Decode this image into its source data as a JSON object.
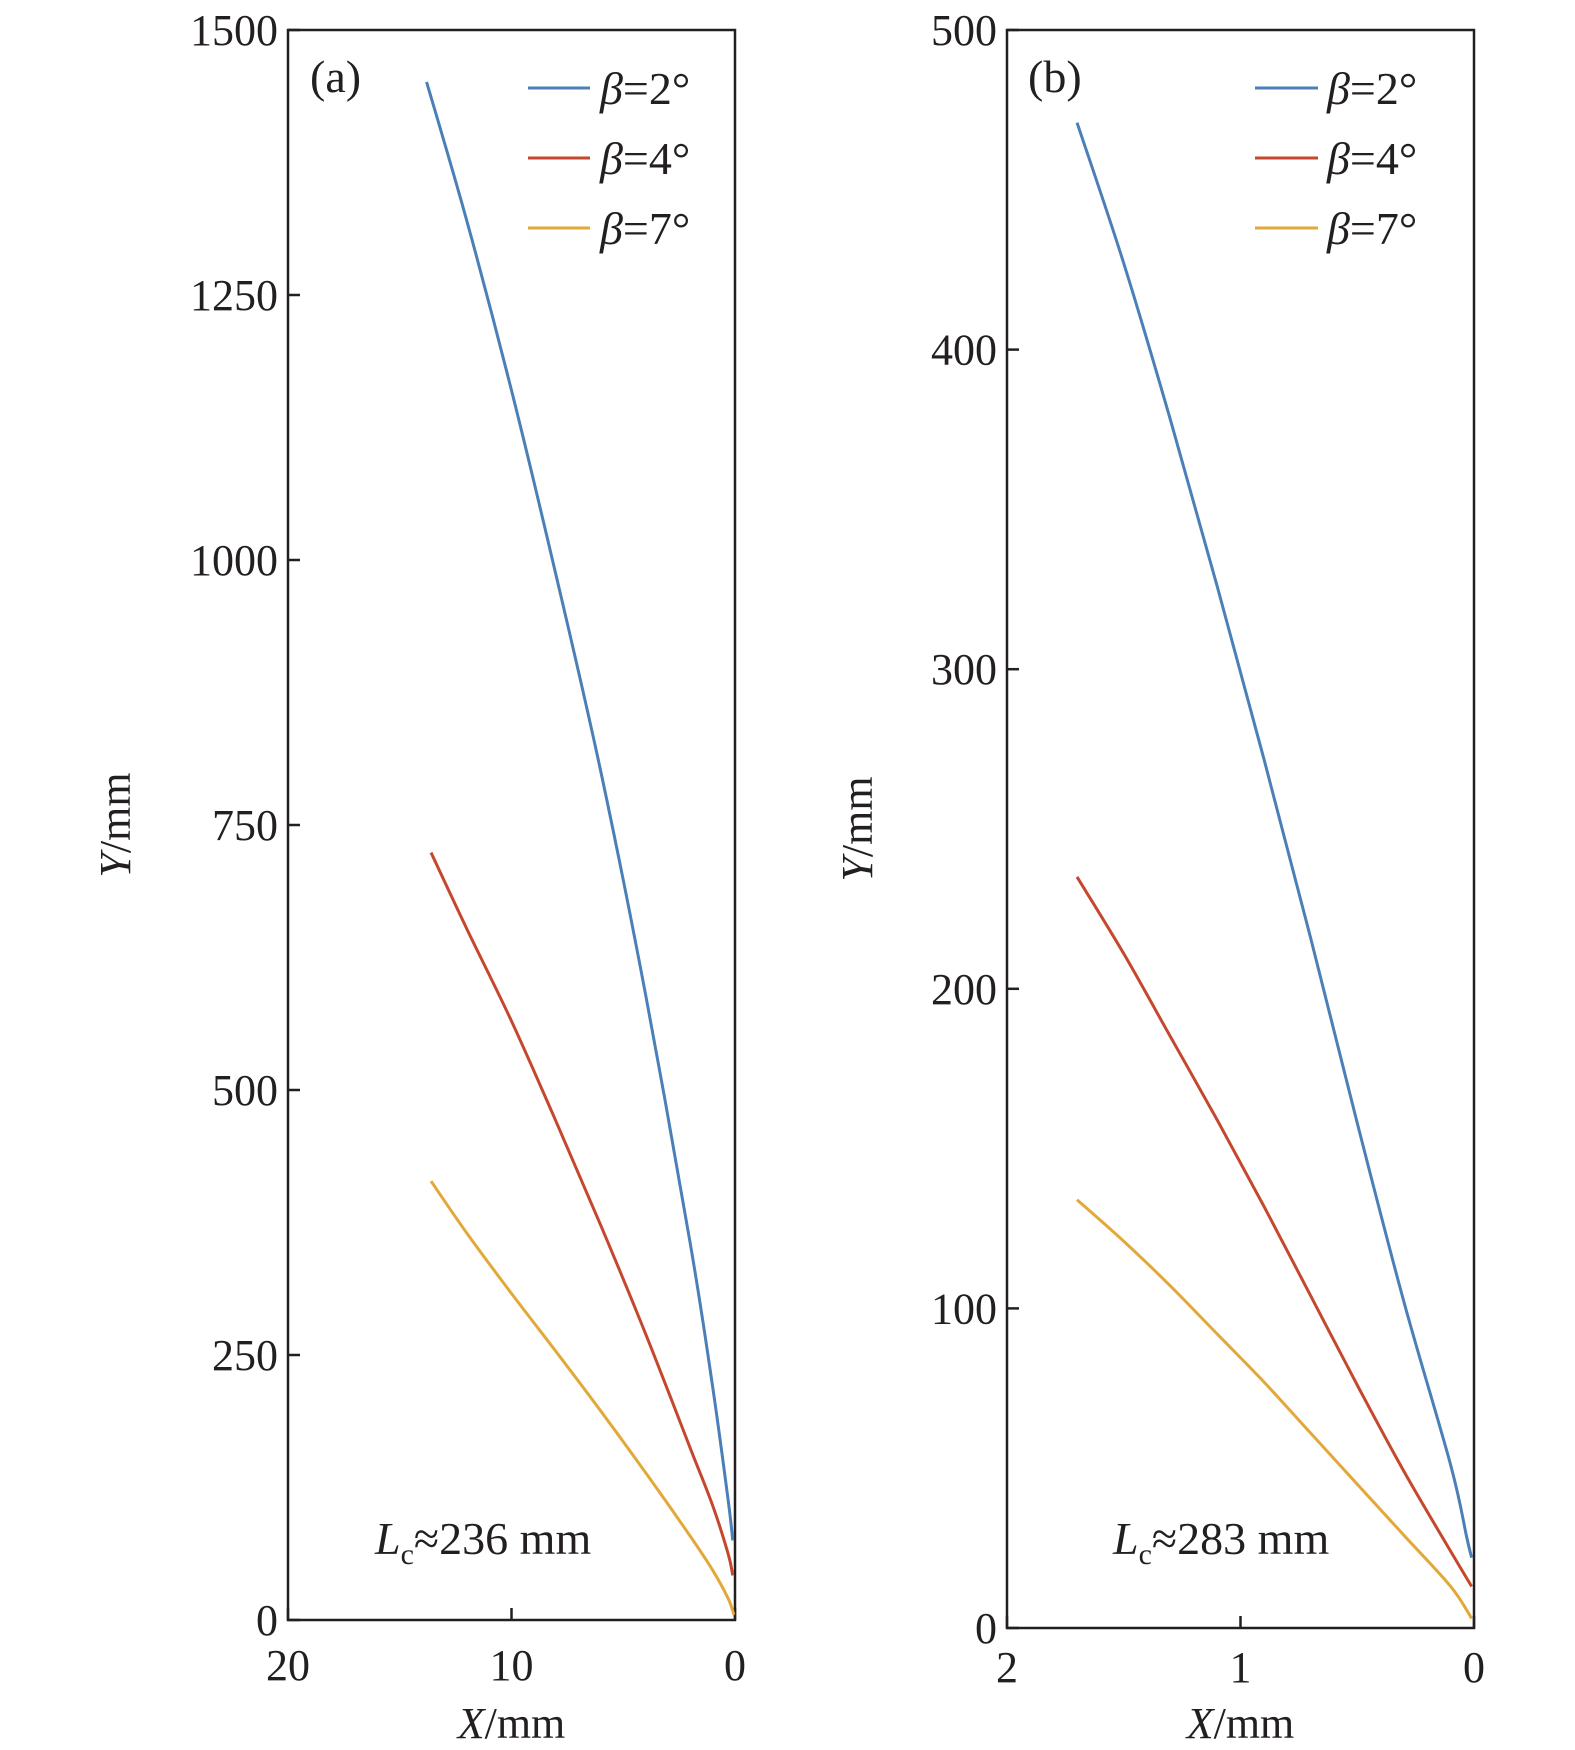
{
  "chart_data": [
    {
      "type": "line",
      "panel_label": "(a)",
      "xlabel": {
        "italic": "X",
        "rest": "/mm"
      },
      "ylabel": {
        "italic": "Y",
        "rest": "/mm"
      },
      "xlim": [
        20,
        0
      ],
      "ylim": [
        0,
        1500
      ],
      "xticks": [
        20,
        10,
        0
      ],
      "yticks": [
        0,
        250,
        500,
        750,
        1000,
        1250,
        1500
      ],
      "annotation": {
        "var": "L",
        "sub": "c",
        "rest": "≈236 mm"
      },
      "legend_position": "top-right",
      "series": [
        {
          "name": "β=2°",
          "greek": "β",
          "value_text": "=2°",
          "color": "#4a7fb8",
          "points": [
            [
              13.8,
              1451
            ],
            [
              12,
              1320
            ],
            [
              10,
              1160
            ],
            [
              8,
              985
            ],
            [
              6,
              800
            ],
            [
              4,
              590
            ],
            [
              2,
              355
            ],
            [
              1,
              220
            ],
            [
              0.3,
              112
            ],
            [
              0.1,
              75
            ]
          ]
        },
        {
          "name": "β=4°",
          "greek": "β",
          "value_text": "=4°",
          "color": "#c5482e",
          "points": [
            [
              13.6,
              724
            ],
            [
              12,
              652
            ],
            [
              10,
              565
            ],
            [
              8,
              470
            ],
            [
              6,
              372
            ],
            [
              4,
              270
            ],
            [
              2,
              162
            ],
            [
              1,
              108
            ],
            [
              0.3,
              62
            ],
            [
              0.1,
              42
            ]
          ]
        },
        {
          "name": "β=7°",
          "greek": "β",
          "value_text": "=7°",
          "color": "#e2a93a",
          "points": [
            [
              13.6,
              414
            ],
            [
              12,
              365
            ],
            [
              10,
              308
            ],
            [
              8,
              253
            ],
            [
              6,
              197
            ],
            [
              4,
              139
            ],
            [
              2,
              79
            ],
            [
              1,
              47
            ],
            [
              0.3,
              20
            ],
            [
              0.05,
              5
            ]
          ]
        }
      ]
    },
    {
      "type": "line",
      "panel_label": "(b)",
      "xlabel": {
        "italic": "X",
        "rest": "/mm"
      },
      "ylabel": {
        "italic": "Y",
        "rest": "/mm"
      },
      "xlim": [
        2,
        0
      ],
      "ylim": [
        0,
        500
      ],
      "xticks": [
        2,
        1,
        0
      ],
      "yticks": [
        0,
        100,
        200,
        300,
        400,
        500
      ],
      "annotation": {
        "var": "L",
        "sub": "c",
        "rest": "≈283 mm"
      },
      "legend_position": "top-right",
      "series": [
        {
          "name": "β=2°",
          "greek": "β",
          "value_text": "=2°",
          "color": "#4a7fb8",
          "points": [
            [
              1.7,
              471
            ],
            [
              1.5,
              427
            ],
            [
              1.3,
              378
            ],
            [
              1.1,
              326
            ],
            [
              0.9,
              272
            ],
            [
              0.7,
              216
            ],
            [
              0.5,
              158
            ],
            [
              0.3,
              102
            ],
            [
              0.1,
              51
            ],
            [
              0.03,
              28
            ],
            [
              0.01,
              22
            ]
          ]
        },
        {
          "name": "β=4°",
          "greek": "β",
          "value_text": "=4°",
          "color": "#c5482e",
          "points": [
            [
              1.7,
              235
            ],
            [
              1.5,
              211
            ],
            [
              1.3,
              185
            ],
            [
              1.1,
              159
            ],
            [
              0.9,
              132
            ],
            [
              0.7,
              104
            ],
            [
              0.5,
              76
            ],
            [
              0.3,
              49
            ],
            [
              0.1,
              24
            ],
            [
              0.01,
              13
            ]
          ]
        },
        {
          "name": "β=7°",
          "greek": "β",
          "value_text": "=7°",
          "color": "#e2a93a",
          "points": [
            [
              1.7,
              134
            ],
            [
              1.5,
              121
            ],
            [
              1.3,
              107
            ],
            [
              1.1,
              92
            ],
            [
              0.9,
              77
            ],
            [
              0.7,
              61
            ],
            [
              0.5,
              45
            ],
            [
              0.3,
              29
            ],
            [
              0.1,
              13
            ],
            [
              0.01,
              3
            ]
          ]
        }
      ]
    }
  ]
}
